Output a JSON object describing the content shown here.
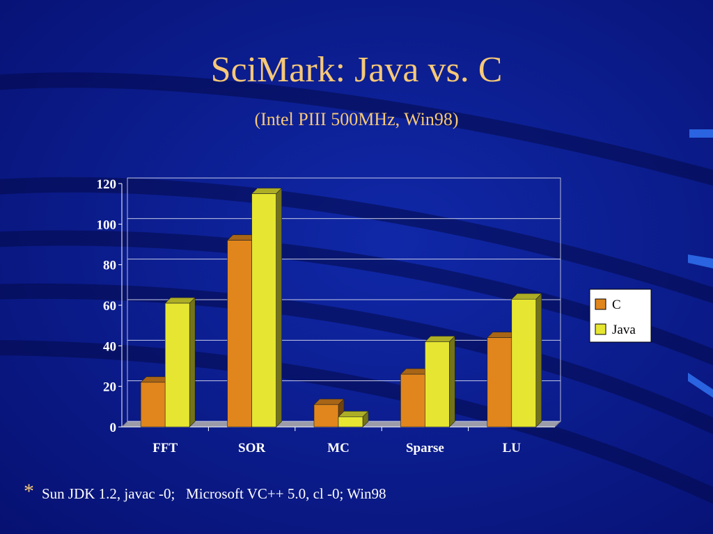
{
  "chart_data": {
    "type": "bar",
    "title": "SciMark: Java vs. C",
    "subtitle": "(Intel PIII 500MHz, Win98)",
    "footnote_marker": "*",
    "footnote": "Sun JDK 1.2, javac -0;   Microsoft VC++ 5.0, cl -0; Win98",
    "categories": [
      "FFT",
      "SOR",
      "MC",
      "Sparse",
      "LU"
    ],
    "series": [
      {
        "name": "C",
        "color": "#e0861c",
        "values": [
          22,
          92,
          11,
          26,
          44
        ]
      },
      {
        "name": "Java",
        "color": "#e6e632",
        "values": [
          61,
          115,
          5,
          42,
          63
        ]
      }
    ],
    "ylim": [
      0,
      120
    ],
    "yticks": [
      0,
      20,
      40,
      60,
      80,
      100,
      120
    ],
    "grid": true,
    "legend": "right"
  }
}
